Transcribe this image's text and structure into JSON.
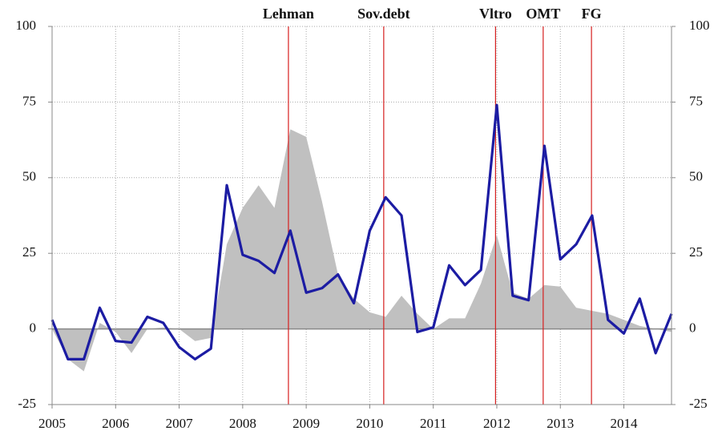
{
  "chart_data": {
    "type": "line",
    "x": [
      2005,
      2005.25,
      2005.5,
      2005.75,
      2006,
      2006.25,
      2006.5,
      2006.75,
      2007,
      2007.25,
      2007.5,
      2007.75,
      2008,
      2008.25,
      2008.5,
      2008.75,
      2009,
      2009.25,
      2009.5,
      2009.75,
      2010,
      2010.25,
      2010.5,
      2010.75,
      2011,
      2011.25,
      2011.5,
      2011.75,
      2012,
      2012.25,
      2012.5,
      2012.75,
      2013,
      2013.25,
      2013.5,
      2013.75,
      2014,
      2014.25,
      2014.5,
      2014.75
    ],
    "series": [
      {
        "kind": "area",
        "color": "#c0c0c0",
        "values": [
          0,
          -10,
          -14,
          2,
          -1,
          -8,
          0,
          0.5,
          0,
          -4,
          -3,
          28,
          40,
          47.5,
          40,
          66,
          63.5,
          42,
          18,
          10,
          5.5,
          4,
          11,
          5,
          0,
          3.5,
          3.5,
          15,
          31,
          12,
          10,
          14.5,
          14,
          7,
          6,
          5,
          3,
          1,
          0,
          -1
        ]
      },
      {
        "kind": "line",
        "color": "#1c1ca3",
        "values": [
          3,
          -10,
          -10,
          7,
          -4,
          -4.5,
          4,
          2,
          -6,
          -10,
          -6.5,
          47.5,
          24.5,
          22.5,
          18.5,
          32.5,
          12,
          13.5,
          18,
          8.5,
          32.5,
          43.5,
          37.5,
          -1,
          0.5,
          21,
          14.5,
          19.5,
          74,
          11,
          9.5,
          60.5,
          23,
          28,
          37.5,
          3,
          -1.5,
          10,
          -8,
          5
        ]
      }
    ],
    "events": [
      {
        "label": "Lehman",
        "x": 2008.72
      },
      {
        "label": "Sov.debt",
        "x": 2010.22
      },
      {
        "label": "Vltro",
        "x": 2011.98
      },
      {
        "label": "OMT",
        "x": 2012.73
      },
      {
        "label": "FG",
        "x": 2013.49
      }
    ],
    "event_color": "#d61f1f",
    "xlim": [
      2005,
      2014.75
    ],
    "xticks": [
      2005,
      2006,
      2007,
      2008,
      2009,
      2010,
      2011,
      2012,
      2013,
      2014
    ],
    "ylim": [
      -25,
      100
    ],
    "yticks": [
      -25,
      0,
      25,
      50,
      75,
      100
    ],
    "y2lim": [
      -25,
      100
    ],
    "y2ticks": [
      -25,
      0,
      25,
      50,
      75,
      100
    ],
    "grid": true
  }
}
